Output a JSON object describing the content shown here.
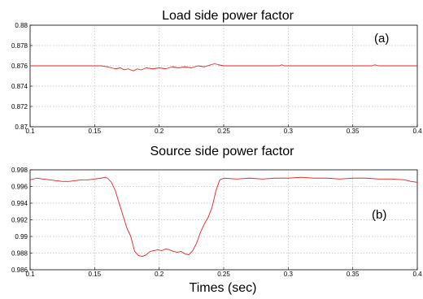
{
  "chart_data": [
    {
      "type": "line",
      "title": "Load side power factor",
      "panel_label": "(a)",
      "xlim": [
        0.1,
        0.4
      ],
      "ylim": [
        0.87,
        0.88
      ],
      "xticks": [
        "0.1",
        "0.15",
        "0.2",
        "0.25",
        "0.3",
        "0.35",
        "0.4"
      ],
      "yticks": [
        "0.87",
        "0.872",
        "0.874",
        "0.876",
        "0.878",
        "0.88"
      ],
      "grid": true,
      "series": [
        {
          "color": "#e8231e",
          "x": [
            0.1,
            0.12,
            0.14,
            0.155,
            0.16,
            0.163,
            0.166,
            0.17,
            0.173,
            0.176,
            0.18,
            0.183,
            0.186,
            0.19,
            0.195,
            0.2,
            0.205,
            0.21,
            0.215,
            0.22,
            0.225,
            0.23,
            0.235,
            0.24,
            0.243,
            0.246,
            0.25,
            0.26,
            0.28,
            0.293,
            0.295,
            0.297,
            0.31,
            0.33,
            0.35,
            0.365,
            0.367,
            0.37,
            0.39,
            0.4
          ],
          "y": [
            0.876,
            0.876,
            0.876,
            0.876,
            0.8759,
            0.8758,
            0.8757,
            0.8758,
            0.8756,
            0.8757,
            0.8755,
            0.8757,
            0.8756,
            0.8758,
            0.8757,
            0.8758,
            0.8757,
            0.8759,
            0.8758,
            0.8759,
            0.8758,
            0.876,
            0.8759,
            0.8761,
            0.8762,
            0.8761,
            0.876,
            0.876,
            0.876,
            0.876,
            0.8761,
            0.876,
            0.876,
            0.876,
            0.876,
            0.876,
            0.8761,
            0.876,
            0.876,
            0.876
          ]
        }
      ]
    },
    {
      "type": "line",
      "title": "Source side power factor",
      "panel_label": "(b)",
      "xlabel": "Times (sec)",
      "xlim": [
        0.1,
        0.4
      ],
      "ylim": [
        0.986,
        0.998
      ],
      "xticks": [
        "0.1",
        "0.15",
        "0.2",
        "0.25",
        "0.3",
        "0.35",
        "0.4"
      ],
      "yticks": [
        "0.986",
        "0.988",
        "0.99",
        "0.992",
        "0.994",
        "0.996",
        "0.998"
      ],
      "grid": true,
      "series": [
        {
          "color": "#e8231e",
          "x": [
            0.1,
            0.105,
            0.11,
            0.115,
            0.12,
            0.125,
            0.13,
            0.135,
            0.14,
            0.145,
            0.15,
            0.155,
            0.158,
            0.16,
            0.163,
            0.166,
            0.169,
            0.172,
            0.175,
            0.178,
            0.181,
            0.184,
            0.187,
            0.19,
            0.193,
            0.196,
            0.199,
            0.202,
            0.205,
            0.208,
            0.211,
            0.214,
            0.217,
            0.22,
            0.223,
            0.226,
            0.229,
            0.232,
            0.235,
            0.238,
            0.241,
            0.244,
            0.247,
            0.25,
            0.26,
            0.27,
            0.28,
            0.29,
            0.3,
            0.31,
            0.32,
            0.33,
            0.34,
            0.35,
            0.36,
            0.37,
            0.38,
            0.39,
            0.395,
            0.4
          ],
          "y": [
            0.9968,
            0.997,
            0.9969,
            0.9968,
            0.9967,
            0.9966,
            0.9966,
            0.9967,
            0.9968,
            0.9968,
            0.9969,
            0.997,
            0.9971,
            0.997,
            0.9965,
            0.9955,
            0.994,
            0.9925,
            0.991,
            0.99,
            0.9882,
            0.9877,
            0.9876,
            0.9878,
            0.9882,
            0.9883,
            0.9884,
            0.9883,
            0.9885,
            0.9884,
            0.9882,
            0.9881,
            0.9882,
            0.9879,
            0.9878,
            0.9883,
            0.9892,
            0.9905,
            0.9915,
            0.9923,
            0.9935,
            0.9955,
            0.9968,
            0.997,
            0.9969,
            0.997,
            0.9969,
            0.997,
            0.997,
            0.9971,
            0.997,
            0.997,
            0.9969,
            0.997,
            0.997,
            0.9969,
            0.9969,
            0.9968,
            0.9966,
            0.9965
          ]
        }
      ]
    }
  ]
}
